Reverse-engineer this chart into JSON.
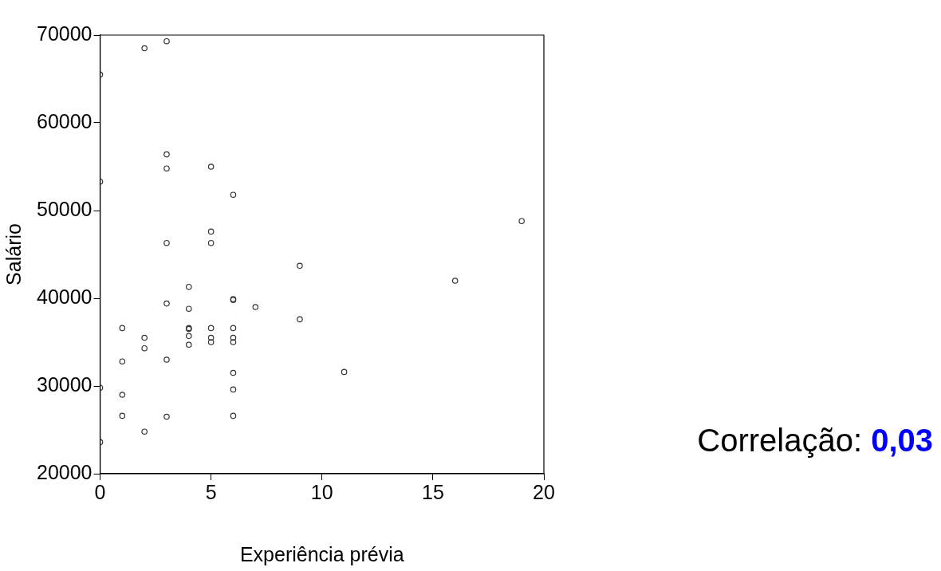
{
  "chart_data": {
    "type": "scatter",
    "xlabel": "Experiência prévia",
    "ylabel": "Salário",
    "marker": "circle",
    "xlim": [
      0,
      20
    ],
    "xticks": [
      0,
      5,
      10,
      15,
      20
    ],
    "ylim": [
      20000,
      70000
    ],
    "yticks": [
      20000,
      30000,
      40000,
      50000,
      60000,
      70000
    ],
    "annotations": [
      "Correlação: 0,03"
    ],
    "series": [
      {
        "color": "#333333",
        "x": [
          0,
          0,
          0,
          0,
          1,
          1,
          1,
          1,
          2,
          2,
          2,
          2,
          3,
          3,
          3,
          3,
          3,
          3,
          3,
          4,
          4,
          4,
          4,
          4,
          4,
          5,
          5,
          5,
          5,
          5,
          5,
          6,
          6,
          6,
          6,
          6,
          6,
          6,
          6,
          6,
          7,
          9,
          9,
          11,
          16,
          19
        ],
        "values": [
          65500,
          53300,
          29800,
          23600,
          36600,
          32800,
          29000,
          26600,
          68500,
          35500,
          34300,
          24800,
          69300,
          56400,
          54800,
          46300,
          39400,
          33000,
          26500,
          41300,
          38800,
          36600,
          36500,
          35700,
          34700,
          55000,
          47600,
          46300,
          36600,
          35500,
          35000,
          51800,
          39900,
          39800,
          36600,
          35500,
          35000,
          31500,
          29600,
          26600,
          39000,
          43700,
          37600,
          31600,
          42000,
          48800
        ]
      }
    ]
  }
}
